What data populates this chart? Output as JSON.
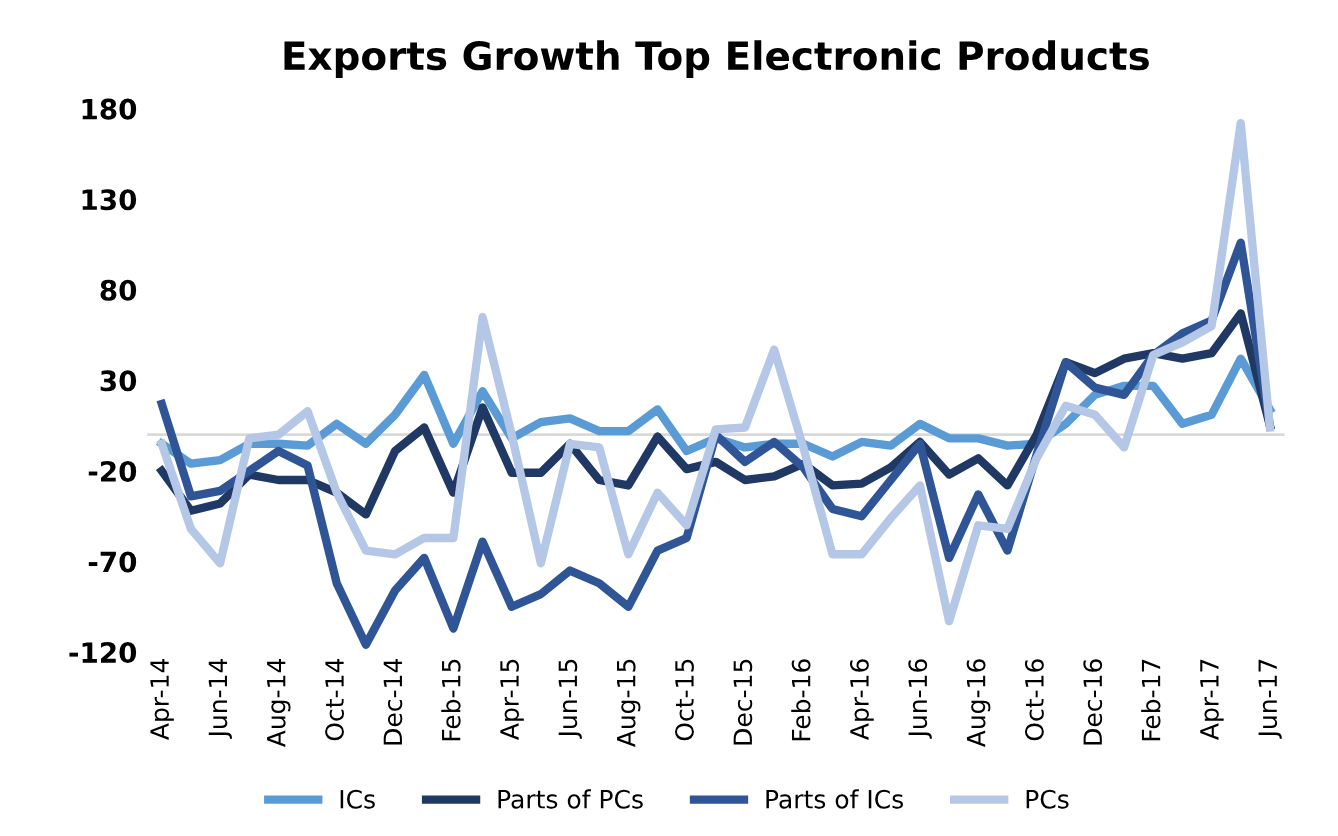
{
  "chart_data": {
    "type": "line",
    "title": "Exports Growth Top Electronic Products",
    "categories": [
      "Apr-14",
      null,
      "Jun-14",
      null,
      "Aug-14",
      null,
      "Oct-14",
      null,
      "Dec-14",
      null,
      "Feb-15",
      null,
      "Apr-15",
      null,
      "Jun-15",
      null,
      "Aug-15",
      null,
      "Oct-15",
      null,
      "Dec-15",
      null,
      "Feb-16",
      null,
      "Apr-16",
      null,
      "Jun-16",
      null,
      "Aug-16",
      null,
      "Oct-16",
      null,
      "Dec-16",
      null,
      "Feb-17",
      null,
      "Apr-17",
      null,
      "Jun-17"
    ],
    "series": [
      {
        "name": "ICs",
        "color": "#5b9bd5",
        "values": [
          -5,
          -16,
          -14,
          -5,
          -5,
          -6,
          6,
          -5,
          11,
          33,
          -5,
          24,
          -2,
          7,
          9,
          2,
          2,
          14,
          -9,
          -2,
          -7,
          -5,
          -5,
          -12,
          -4,
          -6,
          6,
          -2,
          -2,
          -6,
          -5,
          6,
          22,
          27,
          27,
          6,
          11,
          42,
          14
        ]
      },
      {
        "name": "Parts of PCs",
        "color": "#203864",
        "values": [
          -20,
          -42,
          -38,
          -22,
          -25,
          -25,
          -32,
          -44,
          -9,
          4,
          -32,
          15,
          -21,
          -21,
          -5,
          -25,
          -28,
          -1,
          -19,
          -15,
          -25,
          -23,
          -16,
          -28,
          -27,
          -18,
          -4,
          -22,
          -13,
          -28,
          0,
          40,
          34,
          42,
          45,
          42,
          45,
          67,
          5
        ]
      },
      {
        "name": "Parts of ICs",
        "color": "#2f5597",
        "values": [
          17,
          -34,
          -31,
          -20,
          -9,
          -17,
          -82,
          -116,
          -86,
          -68,
          -107,
          -59,
          -95,
          -88,
          -75,
          -82,
          -95,
          -64,
          -57,
          0,
          -15,
          -4,
          -18,
          -41,
          -45,
          -25,
          -5,
          -68,
          -33,
          -64,
          -11,
          40,
          26,
          22,
          44,
          56,
          63,
          106,
          5
        ]
      },
      {
        "name": "PCs",
        "color": "#b4c7e7",
        "values": [
          -5,
          -52,
          -71,
          -2,
          0,
          13,
          -32,
          -64,
          -66,
          -57,
          -57,
          65,
          0,
          -71,
          -5,
          -7,
          -66,
          -32,
          -50,
          3,
          4,
          47,
          -7,
          -66,
          -66,
          -46,
          -28,
          -103,
          -50,
          -52,
          -13,
          16,
          11,
          -7,
          44,
          51,
          60,
          172,
          4
        ]
      }
    ],
    "ylim": [
      -120,
      180
    ],
    "yticks": [
      -120,
      -70,
      -20,
      30,
      80,
      130,
      180
    ],
    "grid": false,
    "legend": "bottom",
    "marker": "none",
    "line_style": "solid"
  }
}
